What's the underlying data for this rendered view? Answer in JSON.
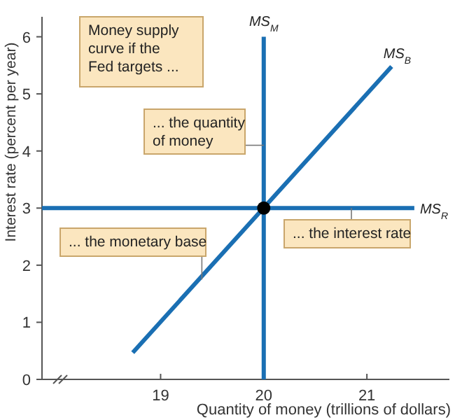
{
  "chart_data": {
    "type": "line",
    "xlabel": "Quantity of money (trillions of dollars)",
    "ylabel": "Interest rate (percent per year)",
    "xlim": [
      17.85,
      21.8
    ],
    "ylim": [
      0,
      6.35
    ],
    "xticks": [
      19,
      20,
      21
    ],
    "yticks": [
      0,
      1,
      2,
      3,
      4,
      5,
      6
    ],
    "grid": false,
    "series": [
      {
        "name": "MS$_{M}$",
        "color": "#1a6fb3",
        "x": [
          20,
          20
        ],
        "values": [
          0,
          6
        ]
      },
      {
        "name": "MS$_{B}$",
        "color": "#1a6fb3",
        "x": [
          18.73,
          21.24
        ],
        "values": [
          0.47,
          5.48
        ]
      },
      {
        "name": "MS$_{R}$",
        "color": "#1a6fb3",
        "x": [
          17.85,
          21.46
        ],
        "values": [
          3,
          3
        ]
      },
      {
        "type": "scatter",
        "color": "#000000",
        "x": [
          20
        ],
        "values": [
          3
        ],
        "marker": "circle"
      }
    ],
    "annotations": [
      "Money supply\ncurve if the\nFed targets ...",
      {
        "text": "... the quantity\nof money",
        "x": 20,
        "y": 4.1
      },
      {
        "text": "... the interest rate",
        "x": 20.85,
        "y": 3
      },
      {
        "text": "... the monetary base",
        "x": 19.4,
        "y": 1.75
      }
    ]
  }
}
